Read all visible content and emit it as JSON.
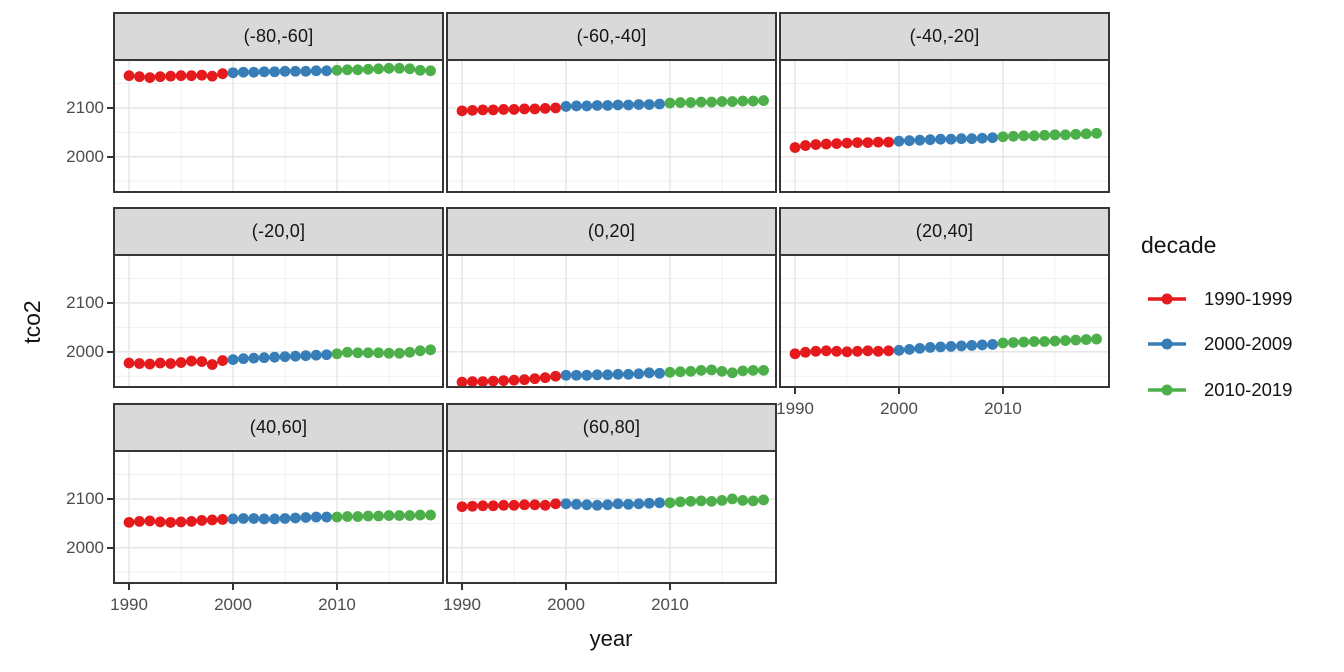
{
  "chart_data": {
    "type": "scatter",
    "xlabel": "year",
    "ylabel": "tco2",
    "legend_title": "decade",
    "legend_position": "right",
    "grid": "on",
    "x_ticks": [
      1990,
      2000,
      2010
    ],
    "x_minor_ticks": [
      1995,
      2005,
      2015
    ],
    "y_ticks": [
      2000,
      2100
    ],
    "y_minor_ticks": [
      1950,
      2050,
      2150
    ],
    "xlim": [
      1988.65,
      2020.1
    ],
    "ylim": [
      1930,
      2196
    ],
    "decades": [
      "1990-1999",
      "2000-2009",
      "2010-2019"
    ],
    "colors": {
      "1990-1999": "#E41A1C",
      "2000-2009": "#377EB8",
      "2010-2019": "#4DAF4A"
    },
    "style": {
      "strip_bg": "#D9D9D9",
      "panel_border": "#363636",
      "grid_major": "#E3E3E3",
      "grid_minor": "#F0F0F0",
      "tick_label_color": "#4D4D4D"
    },
    "facets": [
      {
        "label": "(-80,-60]",
        "series": [
          {
            "decade": "1990-1999",
            "values": [
              2166,
              2164,
              2162,
              2164,
              2165,
              2166,
              2166,
              2167,
              2165,
              2170
            ]
          },
          {
            "decade": "2000-2009",
            "values": [
              2172,
              2173,
              2173,
              2174,
              2174,
              2175,
              2175,
              2175,
              2176,
              2176
            ]
          },
          {
            "decade": "2010-2019",
            "values": [
              2177,
              2178,
              2178,
              2179,
              2180,
              2181,
              2181,
              2180,
              2177,
              2176
            ]
          }
        ]
      },
      {
        "label": "(-60,-40]",
        "series": [
          {
            "decade": "1990-1999",
            "values": [
              2094,
              2095,
              2096,
              2096,
              2097,
              2097,
              2098,
              2098,
              2099,
              2100
            ]
          },
          {
            "decade": "2000-2009",
            "values": [
              2103,
              2104,
              2104,
              2105,
              2105,
              2106,
              2106,
              2107,
              2107,
              2108
            ]
          },
          {
            "decade": "2010-2019",
            "values": [
              2110,
              2111,
              2111,
              2112,
              2112,
              2113,
              2113,
              2114,
              2114,
              2115
            ]
          }
        ]
      },
      {
        "label": "(-40,-20]",
        "series": [
          {
            "decade": "1990-1999",
            "values": [
              2019,
              2023,
              2025,
              2026,
              2027,
              2028,
              2029,
              2029,
              2030,
              2030
            ]
          },
          {
            "decade": "2000-2009",
            "values": [
              2032,
              2033,
              2034,
              2035,
              2036,
              2036,
              2037,
              2037,
              2038,
              2039
            ]
          },
          {
            "decade": "2010-2019",
            "values": [
              2041,
              2042,
              2043,
              2043,
              2044,
              2045,
              2045,
              2046,
              2047,
              2048
            ]
          }
        ]
      },
      {
        "label": "(-20,0]",
        "series": [
          {
            "decade": "1990-1999",
            "values": [
              1977,
              1976,
              1975,
              1977,
              1976,
              1978,
              1981,
              1980,
              1974,
              1982
            ]
          },
          {
            "decade": "2000-2009",
            "values": [
              1984,
              1986,
              1987,
              1988,
              1989,
              1990,
              1991,
              1992,
              1993,
              1994
            ]
          },
          {
            "decade": "2010-2019",
            "values": [
              1996,
              1999,
              1998,
              1998,
              1998,
              1997,
              1997,
              1999,
              2002,
              2004
            ]
          }
        ]
      },
      {
        "label": "(0,20]",
        "series": [
          {
            "decade": "1990-1999",
            "values": [
              1938,
              1939,
              1939,
              1940,
              1941,
              1942,
              1943,
              1945,
              1947,
              1950
            ]
          },
          {
            "decade": "2000-2009",
            "values": [
              1952,
              1952,
              1952,
              1953,
              1953,
              1954,
              1954,
              1955,
              1957,
              1956
            ]
          },
          {
            "decade": "2010-2019",
            "values": [
              1958,
              1959,
              1960,
              1962,
              1963,
              1960,
              1957,
              1961,
              1962,
              1962
            ]
          }
        ]
      },
      {
        "label": "(20,40]",
        "series": [
          {
            "decade": "1990-1999",
            "values": [
              1996,
              1999,
              2001,
              2002,
              2001,
              2000,
              2001,
              2002,
              2001,
              2002
            ]
          },
          {
            "decade": "2000-2009",
            "values": [
              2003,
              2005,
              2007,
              2009,
              2010,
              2011,
              2012,
              2013,
              2014,
              2015
            ]
          },
          {
            "decade": "2010-2019",
            "values": [
              2018,
              2019,
              2020,
              2021,
              2021,
              2022,
              2023,
              2024,
              2025,
              2026
            ]
          }
        ]
      },
      {
        "label": "(40,60]",
        "series": [
          {
            "decade": "1990-1999",
            "values": [
              2052,
              2054,
              2055,
              2053,
              2052,
              2053,
              2054,
              2056,
              2057,
              2058
            ]
          },
          {
            "decade": "2000-2009",
            "values": [
              2059,
              2060,
              2060,
              2059,
              2059,
              2060,
              2061,
              2062,
              2063,
              2063
            ]
          },
          {
            "decade": "2010-2019",
            "values": [
              2063,
              2064,
              2064,
              2065,
              2065,
              2066,
              2066,
              2066,
              2067,
              2067
            ]
          }
        ]
      },
      {
        "label": "(60,80]",
        "series": [
          {
            "decade": "1990-1999",
            "values": [
              2084,
              2085,
              2086,
              2086,
              2087,
              2087,
              2088,
              2088,
              2087,
              2090
            ]
          },
          {
            "decade": "2000-2009",
            "values": [
              2090,
              2089,
              2088,
              2087,
              2088,
              2090,
              2089,
              2090,
              2091,
              2092
            ]
          },
          {
            "decade": "2010-2019",
            "values": [
              2092,
              2094,
              2095,
              2096,
              2095,
              2097,
              2100,
              2097,
              2096,
              2098
            ]
          }
        ]
      }
    ]
  }
}
